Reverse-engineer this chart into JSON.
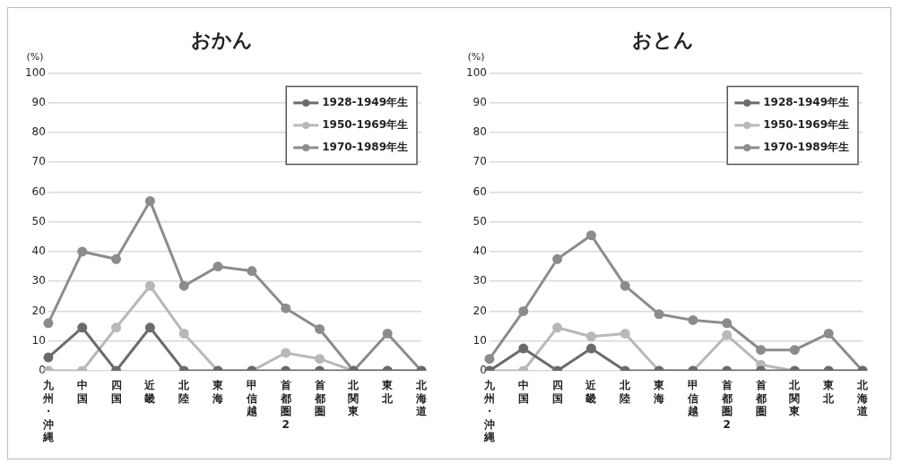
{
  "chart_data": [
    {
      "type": "line",
      "title": "おかん",
      "ylabel": "(%)",
      "categories": [
        "九州・沖縄",
        "中国",
        "四国",
        "近畿",
        "北陸",
        "東海",
        "甲信越",
        "首都圏2",
        "首都圏",
        "北関東",
        "東北",
        "北海道"
      ],
      "ylim": [
        0,
        100
      ],
      "yticks": [
        0,
        10,
        20,
        30,
        40,
        50,
        60,
        70,
        80,
        90,
        100
      ],
      "grid": "y",
      "legend": "top right",
      "marker": "circle",
      "line_style": "solid",
      "series": [
        {
          "name": "1928-1949年生",
          "color": "#6b6b6b",
          "values": [
            4.5,
            14.5,
            0,
            14.5,
            0,
            0,
            0,
            0,
            0,
            0,
            0,
            0
          ]
        },
        {
          "name": "1950-1969年生",
          "color": "#b8b8b8",
          "values": [
            0,
            0,
            14.5,
            28.5,
            12.5,
            0,
            0,
            6,
            4,
            0,
            0,
            0
          ]
        },
        {
          "name": "1970-1989年生",
          "color": "#8c8c8c",
          "values": [
            16,
            40,
            37.5,
            57,
            28.5,
            35,
            33.5,
            21,
            14,
            0,
            12.5,
            0
          ]
        }
      ]
    },
    {
      "type": "line",
      "title": "おとん",
      "ylabel": "(%)",
      "categories": [
        "九州・沖縄",
        "中国",
        "四国",
        "近畿",
        "北陸",
        "東海",
        "甲信越",
        "首都圏2",
        "首都圏",
        "北関東",
        "東北",
        "北海道"
      ],
      "ylim": [
        0,
        100
      ],
      "yticks": [
        0,
        10,
        20,
        30,
        40,
        50,
        60,
        70,
        80,
        90,
        100
      ],
      "grid": "y",
      "legend": "top right",
      "marker": "circle",
      "line_style": "solid",
      "series": [
        {
          "name": "1928-1949年生",
          "color": "#6b6b6b",
          "values": [
            0,
            7.5,
            0,
            7.5,
            0,
            0,
            0,
            0,
            0,
            0,
            0,
            0
          ]
        },
        {
          "name": "1950-1969年生",
          "color": "#b8b8b8",
          "values": [
            0,
            0,
            14.5,
            11.5,
            12.5,
            0,
            0,
            12,
            2,
            0,
            0,
            0
          ]
        },
        {
          "name": "1970-1989年生",
          "color": "#8c8c8c",
          "values": [
            4,
            20,
            37.5,
            45.5,
            28.5,
            19,
            17,
            16,
            7,
            7,
            12.5,
            0
          ]
        }
      ]
    }
  ]
}
